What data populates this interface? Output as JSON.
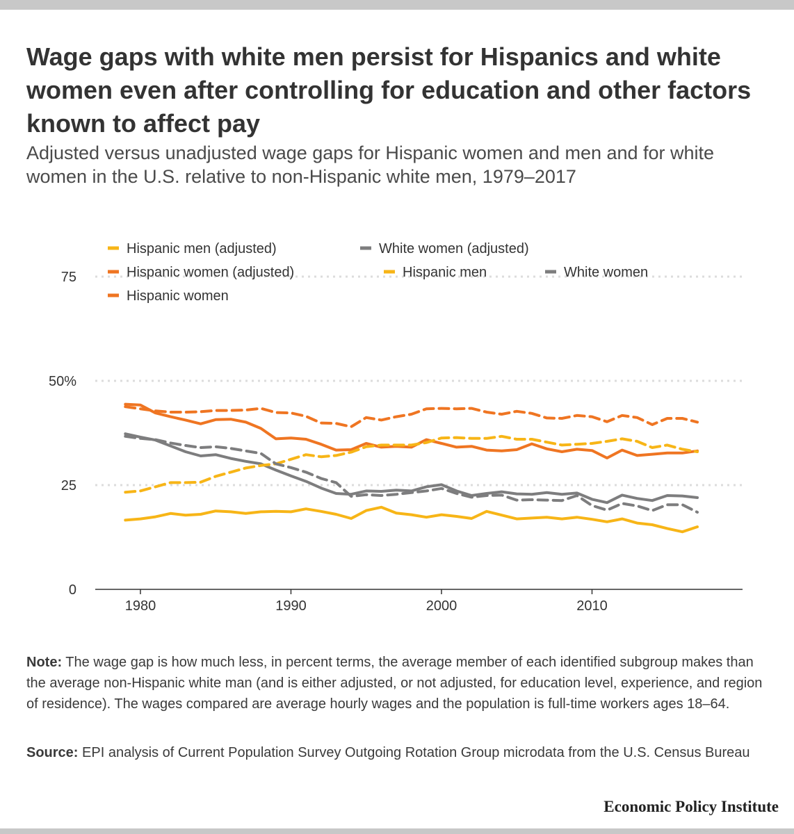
{
  "header": {
    "title": "Wage gaps with white men persist for Hispanics and white women even after controlling for education and other factors known to affect pay",
    "subtitle": "Adjusted versus unadjusted wage gaps for Hispanic women and men and for white women in the U.S. relative to non-Hispanic white men, 1979–2017"
  },
  "footer": {
    "note_label": "Note:",
    "note_text": " The wage gap is how much less, in percent terms, the average member of each identified subgroup makes than the average non-Hispanic white man (and is either adjusted, or not adjusted, for education level, experience, and region of residence). The wages compared are average hourly wages and the population is full-time workers ages 18–64.",
    "source_label": "Source:",
    "source_text": " EPI analysis of Current Population Survey Outgoing Rotation Group microdata from the U.S. Census Bureau",
    "brand": "Economic Policy Institute"
  },
  "chart_data": {
    "type": "line",
    "title": "",
    "xlabel": "",
    "ylabel": "",
    "ylim": [
      0,
      75
    ],
    "xlim": [
      1977,
      2020
    ],
    "yticks": [
      0,
      25,
      50,
      75
    ],
    "ytick_labels": [
      "0",
      "25",
      "50%",
      "75"
    ],
    "xticks": [
      1980,
      1990,
      2000,
      2010
    ],
    "xtick_labels": [
      "1980",
      "1990",
      "2000",
      "2010"
    ],
    "grid": true,
    "legend_position": "top-left",
    "x": [
      1979,
      1980,
      1981,
      1982,
      1983,
      1984,
      1985,
      1986,
      1987,
      1988,
      1989,
      1990,
      1991,
      1992,
      1993,
      1994,
      1995,
      1996,
      1997,
      1998,
      1999,
      2000,
      2001,
      2002,
      2003,
      2004,
      2005,
      2006,
      2007,
      2008,
      2009,
      2010,
      2011,
      2012,
      2013,
      2014,
      2015,
      2016,
      2017
    ],
    "series": [
      {
        "name": "Hispanic men (adjusted)",
        "color": "#f7b517",
        "dashed": false,
        "values": [
          16.6,
          16.9,
          17.4,
          18.2,
          17.8,
          18.0,
          18.8,
          18.6,
          18.2,
          18.6,
          18.7,
          18.6,
          19.3,
          18.7,
          18.0,
          17.0,
          18.9,
          19.7,
          18.3,
          17.9,
          17.3,
          17.9,
          17.5,
          17.0,
          18.7,
          17.8,
          16.9,
          17.1,
          17.3,
          16.9,
          17.3,
          16.8,
          16.2,
          16.9,
          15.9,
          15.5,
          14.6,
          13.8,
          15.0
        ]
      },
      {
        "name": "White women (adjusted)",
        "color": "#7d7d7e",
        "dashed": false,
        "values": [
          37.3,
          36.5,
          35.8,
          34.4,
          33.0,
          32.0,
          32.3,
          31.4,
          30.7,
          30.1,
          28.6,
          27.2,
          25.9,
          24.3,
          23.0,
          22.8,
          23.6,
          23.5,
          23.8,
          23.6,
          24.6,
          25.1,
          23.6,
          22.5,
          23.0,
          23.4,
          22.9,
          22.8,
          23.2,
          22.8,
          23.1,
          21.6,
          20.8,
          22.6,
          21.8,
          21.3,
          22.5,
          22.4,
          22.0
        ]
      },
      {
        "name": "Hispanic women (adjusted)",
        "color": "#ef7522",
        "dashed": false,
        "values": [
          44.4,
          44.2,
          42.3,
          41.4,
          40.6,
          39.7,
          40.7,
          40.8,
          40.1,
          38.6,
          36.1,
          36.3,
          36.0,
          34.8,
          33.4,
          33.5,
          35.0,
          34.1,
          34.3,
          34.1,
          35.9,
          35.0,
          34.1,
          34.3,
          33.4,
          33.2,
          33.5,
          34.9,
          33.7,
          33.0,
          33.6,
          33.3,
          31.5,
          33.4,
          32.1,
          32.4,
          32.7,
          32.7,
          33.2
        ]
      },
      {
        "name": "Hispanic men",
        "color": "#f7b517",
        "dashed": true,
        "values": [
          23.3,
          23.6,
          24.6,
          25.6,
          25.6,
          25.7,
          27.1,
          28.1,
          29.1,
          29.7,
          30.1,
          31.2,
          32.3,
          31.8,
          32.1,
          32.9,
          34.2,
          34.6,
          34.6,
          34.6,
          35.2,
          36.3,
          36.4,
          36.2,
          36.2,
          36.7,
          36.0,
          36.0,
          35.3,
          34.6,
          34.8,
          35.0,
          35.5,
          36.1,
          35.5,
          34.0,
          34.6,
          33.6,
          33.0
        ]
      },
      {
        "name": "White women",
        "color": "#7d7d7e",
        "dashed": true,
        "values": [
          36.7,
          36.2,
          35.9,
          35.1,
          34.5,
          34.0,
          34.2,
          33.8,
          33.2,
          32.6,
          30.1,
          29.2,
          28.1,
          26.6,
          25.6,
          22.3,
          22.7,
          22.5,
          22.8,
          23.2,
          23.6,
          24.2,
          23.0,
          22.1,
          22.5,
          22.6,
          21.4,
          21.5,
          21.4,
          21.3,
          22.5,
          20.1,
          19.0,
          20.6,
          20.0,
          18.9,
          20.3,
          20.3,
          18.5
        ]
      },
      {
        "name": "Hispanic women",
        "color": "#ef7522",
        "dashed": true,
        "values": [
          43.8,
          43.3,
          42.8,
          42.5,
          42.5,
          42.6,
          42.9,
          42.9,
          43.0,
          43.4,
          42.4,
          42.3,
          41.5,
          39.9,
          39.8,
          39.0,
          41.2,
          40.6,
          41.4,
          42.0,
          43.3,
          43.4,
          43.3,
          43.4,
          42.5,
          42.0,
          42.7,
          42.2,
          41.1,
          41.0,
          41.7,
          41.4,
          40.2,
          41.7,
          41.2,
          39.5,
          41.0,
          41.0,
          40.1
        ]
      }
    ]
  }
}
